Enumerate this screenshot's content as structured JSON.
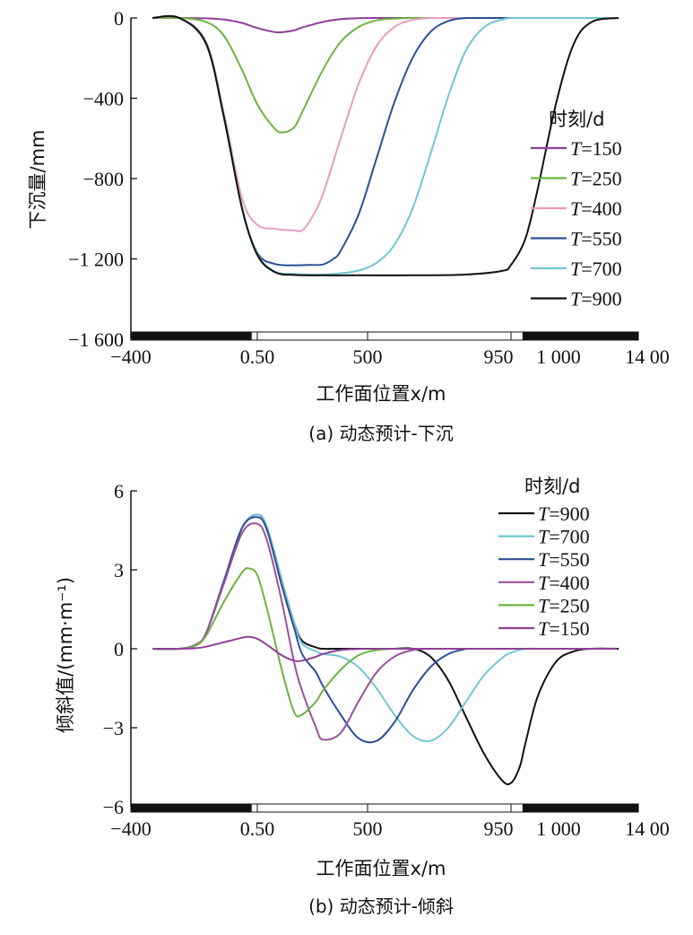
{
  "chart_data": [
    {
      "id": "subsidence",
      "type": "line",
      "title": "(a) 动态预计-下沉",
      "xlabel": "工作面位置x/m",
      "ylabel": "下沉量/mm",
      "xlim": [
        -400,
        1400
      ],
      "ylim": [
        -1600,
        0
      ],
      "x_tick_labels": [
        "-400",
        "0.50",
        "500",
        "950",
        "1 000",
        "14 00"
      ],
      "y_ticks": [
        0,
        -400,
        -800,
        -1200,
        -1600
      ],
      "y_tick_labels": [
        "0",
        "-400",
        "-800",
        "-1 200",
        "-1 600"
      ],
      "grid": false,
      "legend": {
        "title": "时刻/d",
        "placement": "right"
      },
      "mining_bar": {
        "goaf_start": 30,
        "goaf_end": 990
      },
      "series": [
        {
          "name": "T=150",
          "color": "#8e3f96",
          "x": [
            -323,
            -228,
            -132,
            -68,
            -4,
            50,
            120,
            156,
            200,
            233,
            317,
            390,
            463,
            528
          ],
          "y": [
            0,
            0,
            -2,
            -8,
            -25,
            -50,
            -70,
            -70,
            -62,
            -48,
            -20,
            -6,
            -1,
            0
          ]
        },
        {
          "name": "T=250",
          "color": "#6db33f",
          "x": [
            -323,
            -228,
            -132,
            -68,
            -4,
            50,
            120,
            156,
            200,
            233,
            317,
            390,
            463,
            528,
            584,
            641
          ],
          "y": [
            0,
            0,
            -20,
            -90,
            -260,
            -430,
            -550,
            -570,
            -545,
            -470,
            -260,
            -120,
            -45,
            -12,
            -3,
            0
          ]
        },
        {
          "name": "T=400",
          "color": "#e89cc0",
          "x": [
            -323,
            -228,
            -132,
            -68,
            -4,
            50,
            120,
            156,
            200,
            233,
            270,
            317,
            390,
            463,
            528,
            584,
            641,
            697
          ],
          "y": [
            0,
            0,
            -120,
            -480,
            -900,
            -1030,
            -1050,
            -1055,
            -1058,
            -1058,
            -1000,
            -880,
            -600,
            -330,
            -140,
            -45,
            -10,
            0
          ]
        },
        {
          "name": "T=550",
          "color": "#2b4f93",
          "x": [
            -323,
            -228,
            -132,
            -68,
            -4,
            50,
            120,
            200,
            260,
            317,
            360,
            390,
            463,
            528,
            584,
            641,
            697,
            753,
            809
          ],
          "y": [
            0,
            0,
            -125,
            -495,
            -950,
            -1170,
            -1225,
            -1232,
            -1230,
            -1228,
            -1200,
            -1160,
            -980,
            -700,
            -420,
            -200,
            -70,
            -15,
            0
          ]
        },
        {
          "name": "T=700",
          "color": "#72c6d3",
          "x": [
            -323,
            -228,
            -132,
            -68,
            -4,
            50,
            120,
            200,
            317,
            390,
            463,
            528,
            584,
            641,
            697,
            753,
            809,
            866,
            922,
            950
          ],
          "y": [
            0,
            0,
            -128,
            -498,
            -950,
            -1175,
            -1262,
            -1275,
            -1278,
            -1272,
            -1258,
            -1220,
            -1130,
            -950,
            -680,
            -390,
            -160,
            -45,
            -8,
            0
          ]
        },
        {
          "name": "T=900",
          "color": "#111111",
          "x": [
            -323,
            -228,
            -132,
            -68,
            -4,
            50,
            120,
            200,
            317,
            463,
            641,
            809,
            922,
            950,
            1000,
            1044,
            1108,
            1171,
            1235,
            1330
          ],
          "y": [
            0,
            0,
            -130,
            -500,
            -950,
            -1180,
            -1265,
            -1280,
            -1282,
            -1282,
            -1282,
            -1278,
            -1260,
            -1230,
            -1100,
            -850,
            -430,
            -130,
            -20,
            0
          ]
        }
      ]
    },
    {
      "id": "tilt",
      "type": "line",
      "title": "(b) 动态预计-倾斜",
      "xlabel": "工作面位置x/m",
      "ylabel": "倾斜值/(mm·m⁻¹)",
      "xlim": [
        -400,
        1400
      ],
      "ylim": [
        -6,
        6
      ],
      "x_tick_labels": [
        "-400",
        "0.50",
        "500",
        "950",
        "1 000",
        "14 00"
      ],
      "y_ticks": [
        6,
        3,
        0,
        -3,
        -6
      ],
      "y_tick_labels": [
        "6",
        "3",
        "0",
        "-3",
        "-6"
      ],
      "grid": false,
      "legend": {
        "title": "时刻/d",
        "placement": "top-right"
      },
      "mining_bar": {
        "goaf_start": 30,
        "goaf_end": 990
      },
      "series": [
        {
          "name": "T=900",
          "color": "#111111",
          "x": [
            -323,
            -228,
            -170,
            -132,
            -68,
            -4,
            50,
            90,
            150,
            200,
            233,
            290,
            317,
            390,
            463,
            528,
            584,
            641,
            697,
            753,
            809,
            866,
            922,
            950,
            980,
            1000,
            1044,
            1108,
            1171,
            1235,
            1330
          ],
          "y": [
            0,
            0,
            0.15,
            0.6,
            2.6,
            4.6,
            5.1,
            4.6,
            2.6,
            1.0,
            0.3,
            0.05,
            0,
            0,
            0,
            0,
            0,
            0,
            -0.3,
            -1.2,
            -2.6,
            -4.0,
            -5.0,
            -5.1,
            -4.5,
            -3.6,
            -1.8,
            -0.5,
            -0.1,
            0,
            0
          ]
        },
        {
          "name": "T=700",
          "color": "#72c6d3",
          "x": [
            -323,
            -228,
            -170,
            -132,
            -68,
            -4,
            50,
            90,
            150,
            200,
            233,
            290,
            317,
            390,
            463,
            528,
            584,
            641,
            697,
            753,
            809,
            866,
            922,
            950,
            1000,
            1044
          ],
          "y": [
            0,
            0,
            0.15,
            0.6,
            2.6,
            4.6,
            5.1,
            4.6,
            2.6,
            1.0,
            0.2,
            -0.1,
            -0.2,
            -0.3,
            -0.7,
            -1.5,
            -2.5,
            -3.3,
            -3.5,
            -3.0,
            -2.0,
            -1.0,
            -0.35,
            -0.15,
            0,
            0
          ]
        },
        {
          "name": "T=550",
          "color": "#2b4f93",
          "x": [
            -323,
            -228,
            -170,
            -132,
            -68,
            -4,
            50,
            90,
            150,
            200,
            233,
            290,
            317,
            390,
            463,
            528,
            584,
            641,
            697,
            753,
            809
          ],
          "y": [
            0,
            0,
            0.15,
            0.6,
            2.6,
            4.6,
            5.0,
            4.5,
            2.4,
            0.8,
            -0.2,
            -0.9,
            -1.4,
            -2.5,
            -3.4,
            -3.5,
            -2.8,
            -1.6,
            -0.7,
            -0.2,
            0
          ]
        },
        {
          "name": "T=400",
          "color": "#9b4f9e",
          "x": [
            -323,
            -228,
            -170,
            -132,
            -68,
            -4,
            50,
            90,
            150,
            200,
            233,
            290,
            317,
            390,
            463,
            528,
            584,
            641,
            697
          ],
          "y": [
            0,
            0,
            0.15,
            0.6,
            2.5,
            4.4,
            4.75,
            4.1,
            1.8,
            -0.5,
            -1.6,
            -3.0,
            -3.45,
            -3.2,
            -2.0,
            -0.9,
            -0.3,
            -0.05,
            0
          ]
        },
        {
          "name": "T=250",
          "color": "#6db33f",
          "x": [
            -323,
            -228,
            -170,
            -132,
            -68,
            -4,
            20,
            50,
            90,
            150,
            200,
            233,
            290,
            317,
            390,
            463,
            528,
            584
          ],
          "y": [
            0,
            0,
            0.12,
            0.5,
            1.8,
            2.9,
            3.05,
            2.8,
            1.5,
            -0.8,
            -2.4,
            -2.5,
            -2.0,
            -1.6,
            -0.8,
            -0.25,
            -0.05,
            0
          ]
        },
        {
          "name": "T=150",
          "color": "#8e3f96",
          "x": [
            -323,
            -228,
            -170,
            -132,
            -68,
            -4,
            20,
            50,
            90,
            150,
            200,
            233,
            290,
            317,
            390,
            463,
            528
          ],
          "y": [
            0,
            0,
            0.02,
            0.08,
            0.25,
            0.42,
            0.45,
            0.38,
            0.15,
            -0.25,
            -0.45,
            -0.45,
            -0.3,
            -0.2,
            -0.05,
            -0.01,
            0
          ]
        }
      ]
    }
  ]
}
